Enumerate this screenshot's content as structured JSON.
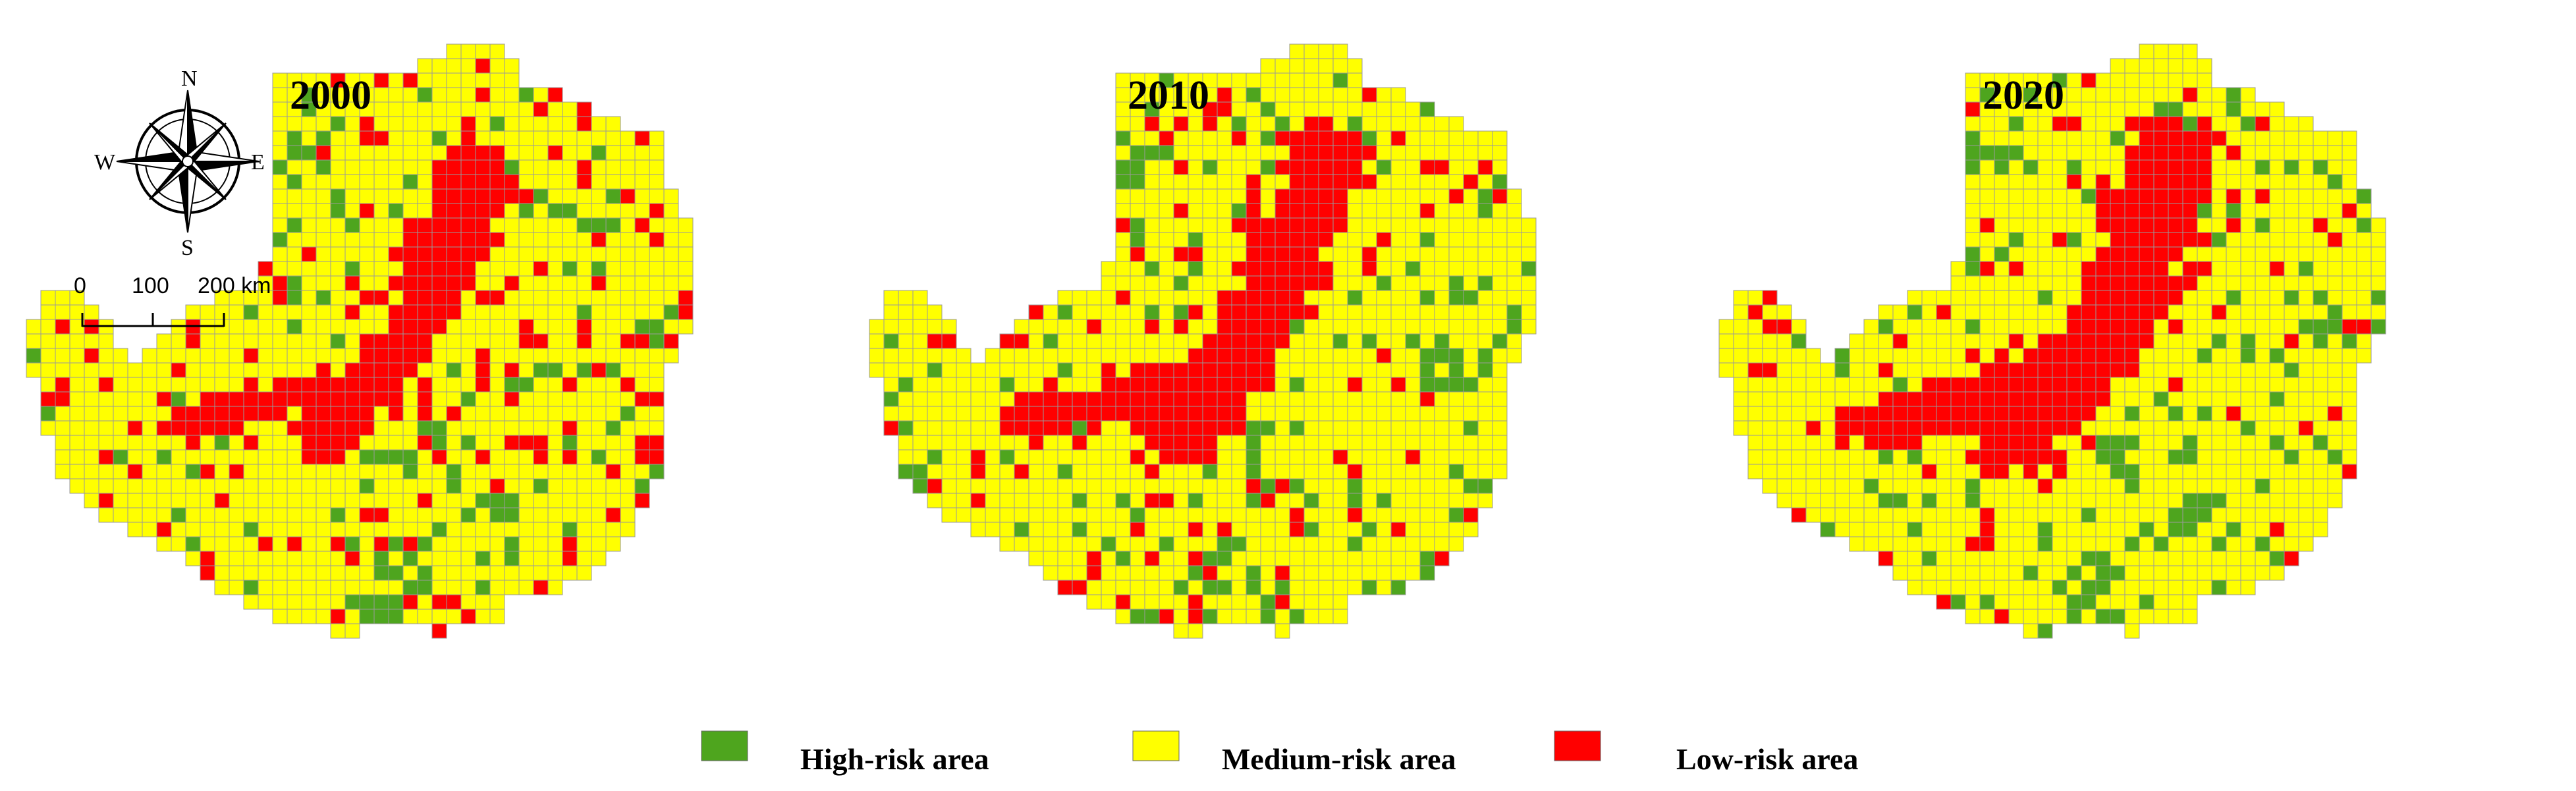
{
  "maps": [
    {
      "year": "2000",
      "seed": 11,
      "variant": 0
    },
    {
      "year": "2010",
      "seed": 23,
      "variant": 1
    },
    {
      "year": "2020",
      "seed": 37,
      "variant": 2
    }
  ],
  "compass": {
    "n": "N",
    "s": "S",
    "e": "E",
    "w": "W"
  },
  "scalebar": {
    "labels": [
      "0",
      "100",
      "200 km"
    ]
  },
  "legend": [
    {
      "label": "High-risk area",
      "color": "#4ea51e"
    },
    {
      "label": "Medium-risk area",
      "color": "#ffff00"
    },
    {
      "label": "Low-risk area",
      "color": "#ff0000"
    }
  ],
  "colors": {
    "high": "#4ea51e",
    "medium": "#ffff00",
    "low": "#ff0000",
    "gridline": "#9a9a9a"
  }
}
